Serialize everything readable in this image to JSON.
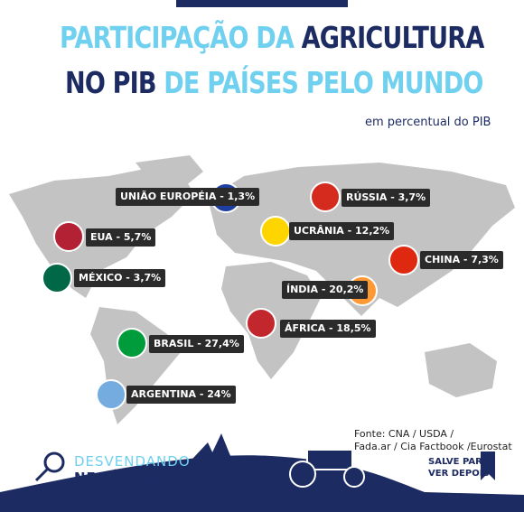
{
  "header": {
    "line1": [
      "PARTICIPAÇÃO DA",
      "AGRICULTURA"
    ],
    "line2": [
      "NO PIB",
      "DE PAÍSES PELO MUNDO"
    ],
    "subtitle": "em percentual do PIB"
  },
  "labels": [
    "UNIÃO EUROPÉIA - 1,3%",
    "RÚSSIA - 3,7%",
    "UCRÂNIA - 12,2%",
    "EUA - 5,7%",
    "CHINA - 7,3%",
    "MÉXICO - 3,7%",
    "ÍNDIA - 20,2%",
    "ÁFRICA - 18,5%",
    "BRASIL - 27,4%",
    "ARGENTINA - 24%"
  ],
  "source": [
    "Fonte: CNA / USDA /",
    "Fada.ar / Cia Factbook /Eurostat"
  ],
  "brand": [
    "DESVENDANDO",
    "NEGÓCIOS"
  ],
  "save": [
    "SALVE PARA",
    "VER DEPOIS"
  ]
}
